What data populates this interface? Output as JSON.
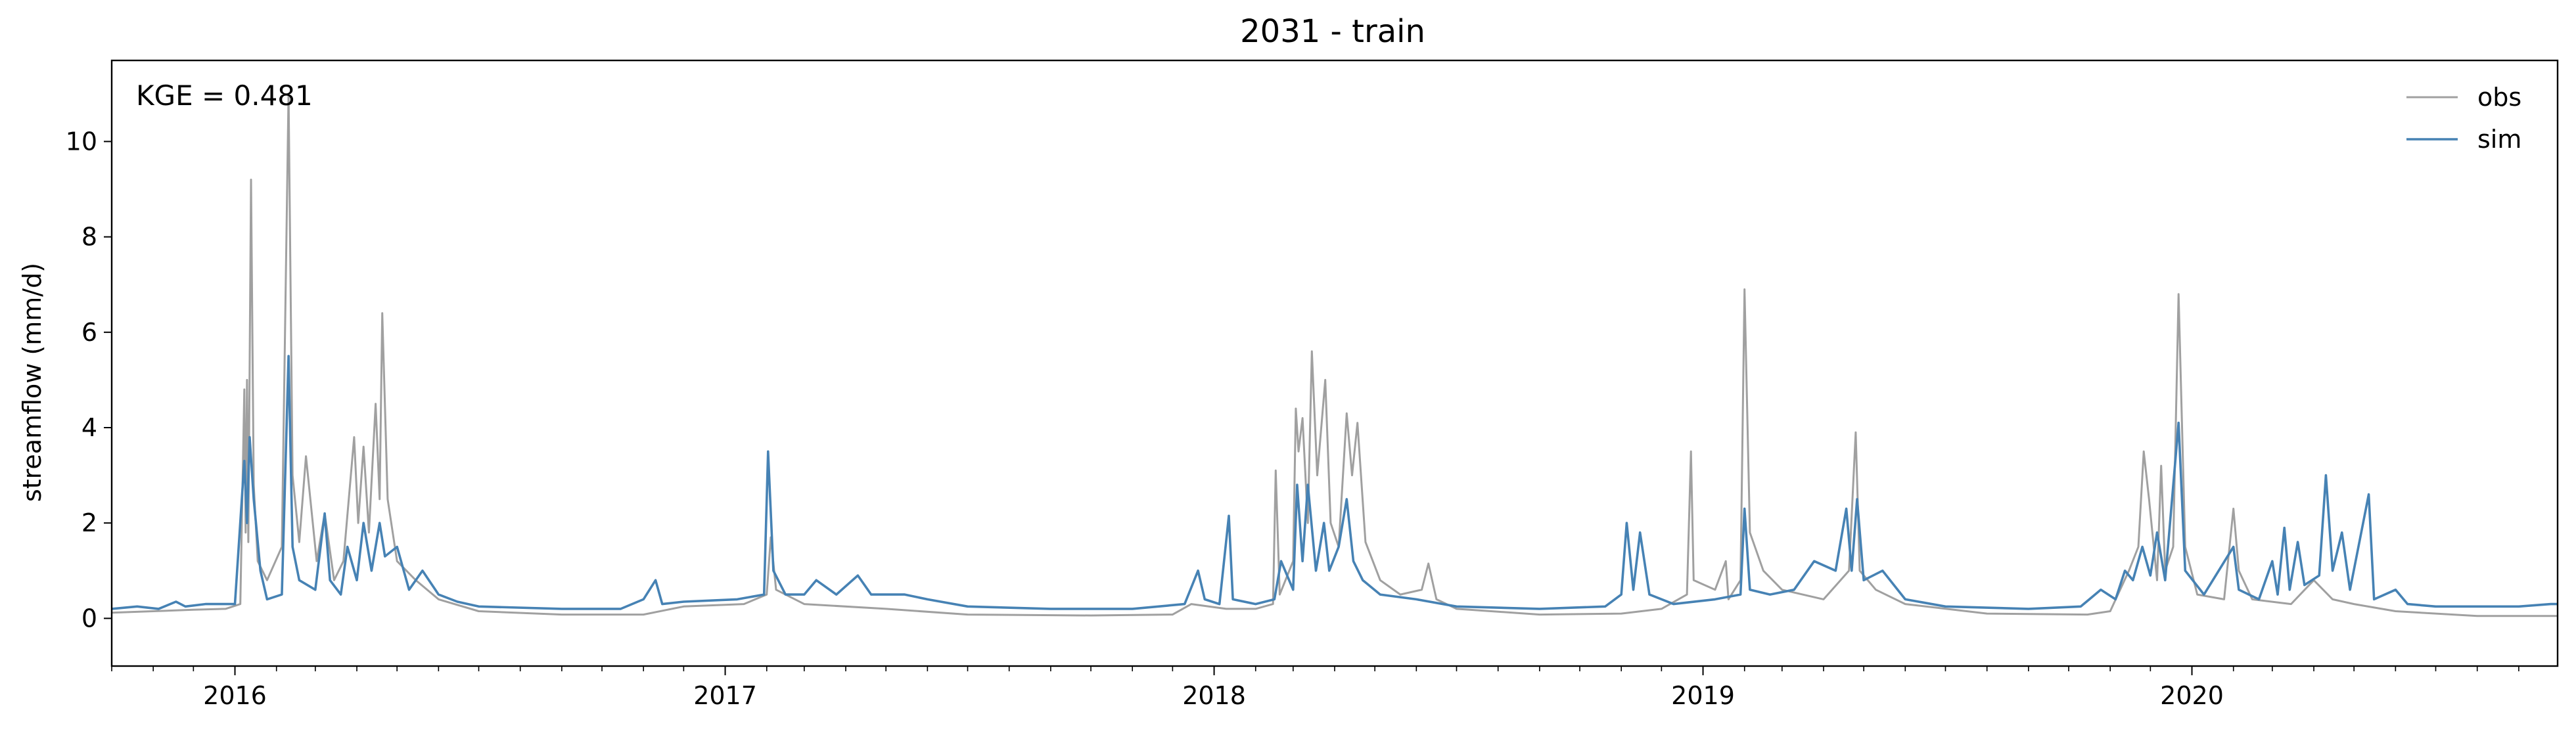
{
  "chart_data": {
    "type": "line",
    "title": "2031 - train",
    "xlabel": "",
    "ylabel": "streamflow (mm/d)",
    "annotation": "KGE = 0.481",
    "legend_position": "top-right",
    "grid": false,
    "xlim": [
      "2015-10-01",
      "2020-09-30"
    ],
    "ylim": [
      -1,
      11.7
    ],
    "yticks": [
      0,
      2,
      4,
      6,
      8,
      10
    ],
    "xtick_labels": [
      "2016",
      "2017",
      "2018",
      "2019",
      "2020"
    ],
    "xtick_dates": [
      "2016-01-01",
      "2017-01-01",
      "2018-01-01",
      "2019-01-01",
      "2020-01-01"
    ],
    "colors": {
      "obs": "#a0a0a0",
      "sim": "#4682b4"
    },
    "series": [
      {
        "name": "obs",
        "points": [
          [
            "2015-10-01",
            0.12
          ],
          [
            "2015-11-01",
            0.15
          ],
          [
            "2015-12-01",
            0.18
          ],
          [
            "2015-12-25",
            0.2
          ],
          [
            "2016-01-05",
            0.3
          ],
          [
            "2016-01-08",
            4.8
          ],
          [
            "2016-01-09",
            1.8
          ],
          [
            "2016-01-10",
            5.0
          ],
          [
            "2016-01-11",
            1.6
          ],
          [
            "2016-01-13",
            9.2
          ],
          [
            "2016-01-15",
            2.8
          ],
          [
            "2016-01-18",
            1.2
          ],
          [
            "2016-01-25",
            0.8
          ],
          [
            "2016-02-05",
            1.5
          ],
          [
            "2016-02-10",
            11.0
          ],
          [
            "2016-02-13",
            3.0
          ],
          [
            "2016-02-18",
            1.6
          ],
          [
            "2016-02-23",
            3.4
          ],
          [
            "2016-03-02",
            1.2
          ],
          [
            "2016-03-08",
            2.2
          ],
          [
            "2016-03-15",
            0.8
          ],
          [
            "2016-03-22",
            1.2
          ],
          [
            "2016-03-30",
            3.8
          ],
          [
            "2016-04-02",
            2.0
          ],
          [
            "2016-04-06",
            3.6
          ],
          [
            "2016-04-10",
            1.8
          ],
          [
            "2016-04-15",
            4.5
          ],
          [
            "2016-04-18",
            2.5
          ],
          [
            "2016-04-20",
            6.4
          ],
          [
            "2016-04-24",
            2.5
          ],
          [
            "2016-05-01",
            1.2
          ],
          [
            "2016-05-15",
            0.8
          ],
          [
            "2016-06-01",
            0.4
          ],
          [
            "2016-07-01",
            0.15
          ],
          [
            "2016-09-01",
            0.08
          ],
          [
            "2016-11-01",
            0.08
          ],
          [
            "2016-12-01",
            0.25
          ],
          [
            "2017-01-15",
            0.3
          ],
          [
            "2017-02-01",
            0.5
          ],
          [
            "2017-02-04",
            1.7
          ],
          [
            "2017-02-08",
            0.6
          ],
          [
            "2017-03-01",
            0.3
          ],
          [
            "2017-05-01",
            0.2
          ],
          [
            "2017-07-01",
            0.08
          ],
          [
            "2017-10-01",
            0.06
          ],
          [
            "2017-12-01",
            0.08
          ],
          [
            "2017-12-15",
            0.3
          ],
          [
            "2018-01-10",
            0.2
          ],
          [
            "2018-02-01",
            0.2
          ],
          [
            "2018-02-14",
            0.3
          ],
          [
            "2018-02-16",
            3.1
          ],
          [
            "2018-02-19",
            0.5
          ],
          [
            "2018-03-01",
            1.2
          ],
          [
            "2018-03-03",
            4.4
          ],
          [
            "2018-03-05",
            3.5
          ],
          [
            "2018-03-08",
            4.2
          ],
          [
            "2018-03-12",
            2.0
          ],
          [
            "2018-03-15",
            5.6
          ],
          [
            "2018-03-19",
            3.0
          ],
          [
            "2018-03-25",
            5.0
          ],
          [
            "2018-03-29",
            2.0
          ],
          [
            "2018-04-04",
            1.5
          ],
          [
            "2018-04-10",
            4.3
          ],
          [
            "2018-04-14",
            3.0
          ],
          [
            "2018-04-18",
            4.1
          ],
          [
            "2018-04-24",
            1.6
          ],
          [
            "2018-05-05",
            0.8
          ],
          [
            "2018-05-20",
            0.5
          ],
          [
            "2018-06-05",
            0.6
          ],
          [
            "2018-06-10",
            1.15
          ],
          [
            "2018-06-16",
            0.4
          ],
          [
            "2018-07-01",
            0.2
          ],
          [
            "2018-09-01",
            0.08
          ],
          [
            "2018-11-01",
            0.1
          ],
          [
            "2018-12-01",
            0.2
          ],
          [
            "2018-12-20",
            0.5
          ],
          [
            "2018-12-23",
            3.5
          ],
          [
            "2018-12-25",
            0.8
          ],
          [
            "2019-01-10",
            0.6
          ],
          [
            "2019-01-18",
            1.2
          ],
          [
            "2019-01-20",
            0.4
          ],
          [
            "2019-01-29",
            0.8
          ],
          [
            "2019-02-01",
            6.9
          ],
          [
            "2019-02-05",
            1.8
          ],
          [
            "2019-02-15",
            1.0
          ],
          [
            "2019-03-01",
            0.6
          ],
          [
            "2019-04-01",
            0.4
          ],
          [
            "2019-04-20",
            1.0
          ],
          [
            "2019-04-25",
            3.9
          ],
          [
            "2019-04-28",
            1.0
          ],
          [
            "2019-05-10",
            0.6
          ],
          [
            "2019-06-01",
            0.3
          ],
          [
            "2019-08-01",
            0.1
          ],
          [
            "2019-10-15",
            0.08
          ],
          [
            "2019-11-01",
            0.15
          ],
          [
            "2019-11-15",
            1.0
          ],
          [
            "2019-11-22",
            1.5
          ],
          [
            "2019-11-26",
            3.5
          ],
          [
            "2019-11-30",
            2.5
          ],
          [
            "2019-12-06",
            0.8
          ],
          [
            "2019-12-09",
            3.2
          ],
          [
            "2019-12-12",
            1.0
          ],
          [
            "2019-12-18",
            1.5
          ],
          [
            "2019-12-22",
            6.8
          ],
          [
            "2019-12-27",
            1.5
          ],
          [
            "2020-01-05",
            0.5
          ],
          [
            "2020-01-25",
            0.4
          ],
          [
            "2020-02-01",
            2.3
          ],
          [
            "2020-02-05",
            1.0
          ],
          [
            "2020-02-15",
            0.4
          ],
          [
            "2020-03-15",
            0.3
          ],
          [
            "2020-04-01",
            0.8
          ],
          [
            "2020-04-15",
            0.4
          ],
          [
            "2020-05-01",
            0.3
          ],
          [
            "2020-06-01",
            0.15
          ],
          [
            "2020-08-01",
            0.05
          ],
          [
            "2020-09-30",
            0.05
          ]
        ]
      },
      {
        "name": "sim",
        "points": [
          [
            "2015-10-01",
            0.2
          ],
          [
            "2015-10-20",
            0.25
          ],
          [
            "2015-11-05",
            0.2
          ],
          [
            "2015-11-18",
            0.35
          ],
          [
            "2015-11-25",
            0.25
          ],
          [
            "2015-12-10",
            0.3
          ],
          [
            "2016-01-01",
            0.3
          ],
          [
            "2016-01-08",
            3.3
          ],
          [
            "2016-01-10",
            2.0
          ],
          [
            "2016-01-12",
            3.8
          ],
          [
            "2016-01-15",
            2.5
          ],
          [
            "2016-01-20",
            1.0
          ],
          [
            "2016-01-25",
            0.4
          ],
          [
            "2016-02-05",
            0.5
          ],
          [
            "2016-02-10",
            5.5
          ],
          [
            "2016-02-13",
            1.5
          ],
          [
            "2016-02-18",
            0.8
          ],
          [
            "2016-03-01",
            0.6
          ],
          [
            "2016-03-08",
            2.2
          ],
          [
            "2016-03-12",
            0.8
          ],
          [
            "2016-03-20",
            0.5
          ],
          [
            "2016-03-25",
            1.5
          ],
          [
            "2016-04-01",
            0.8
          ],
          [
            "2016-04-06",
            2.0
          ],
          [
            "2016-04-12",
            1.0
          ],
          [
            "2016-04-18",
            2.0
          ],
          [
            "2016-04-22",
            1.3
          ],
          [
            "2016-05-01",
            1.5
          ],
          [
            "2016-05-10",
            0.6
          ],
          [
            "2016-05-20",
            1.0
          ],
          [
            "2016-06-01",
            0.5
          ],
          [
            "2016-06-15",
            0.35
          ],
          [
            "2016-07-01",
            0.25
          ],
          [
            "2016-09-01",
            0.2
          ],
          [
            "2016-10-15",
            0.2
          ],
          [
            "2016-11-01",
            0.4
          ],
          [
            "2016-11-10",
            0.8
          ],
          [
            "2016-11-15",
            0.3
          ],
          [
            "2016-12-01",
            0.35
          ],
          [
            "2017-01-10",
            0.4
          ],
          [
            "2017-01-30",
            0.5
          ],
          [
            "2017-02-02",
            3.5
          ],
          [
            "2017-02-06",
            1.0
          ],
          [
            "2017-02-15",
            0.5
          ],
          [
            "2017-03-01",
            0.5
          ],
          [
            "2017-03-10",
            0.8
          ],
          [
            "2017-03-25",
            0.5
          ],
          [
            "2017-04-10",
            0.9
          ],
          [
            "2017-04-20",
            0.5
          ],
          [
            "2017-05-15",
            0.5
          ],
          [
            "2017-06-01",
            0.4
          ],
          [
            "2017-07-01",
            0.25
          ],
          [
            "2017-09-01",
            0.2
          ],
          [
            "2017-11-01",
            0.2
          ],
          [
            "2017-12-10",
            0.3
          ],
          [
            "2017-12-20",
            1.0
          ],
          [
            "2017-12-25",
            0.4
          ],
          [
            "2018-01-05",
            0.3
          ],
          [
            "2018-01-12",
            2.15
          ],
          [
            "2018-01-15",
            0.4
          ],
          [
            "2018-02-01",
            0.3
          ],
          [
            "2018-02-15",
            0.4
          ],
          [
            "2018-02-20",
            1.2
          ],
          [
            "2018-03-01",
            0.6
          ],
          [
            "2018-03-04",
            2.8
          ],
          [
            "2018-03-08",
            1.2
          ],
          [
            "2018-03-12",
            2.8
          ],
          [
            "2018-03-18",
            1.0
          ],
          [
            "2018-03-24",
            2.0
          ],
          [
            "2018-03-28",
            1.0
          ],
          [
            "2018-04-04",
            1.5
          ],
          [
            "2018-04-10",
            2.5
          ],
          [
            "2018-04-15",
            1.2
          ],
          [
            "2018-04-22",
            0.8
          ],
          [
            "2018-05-05",
            0.5
          ],
          [
            "2018-06-01",
            0.4
          ],
          [
            "2018-07-01",
            0.25
          ],
          [
            "2018-09-01",
            0.2
          ],
          [
            "2018-10-20",
            0.25
          ],
          [
            "2018-11-01",
            0.5
          ],
          [
            "2018-11-05",
            2.0
          ],
          [
            "2018-11-10",
            0.6
          ],
          [
            "2018-11-15",
            1.8
          ],
          [
            "2018-11-22",
            0.5
          ],
          [
            "2018-12-10",
            0.3
          ],
          [
            "2019-01-10",
            0.4
          ],
          [
            "2019-01-29",
            0.5
          ],
          [
            "2019-02-01",
            2.3
          ],
          [
            "2019-02-05",
            0.6
          ],
          [
            "2019-02-20",
            0.5
          ],
          [
            "2019-03-10",
            0.6
          ],
          [
            "2019-03-25",
            1.2
          ],
          [
            "2019-04-10",
            1.0
          ],
          [
            "2019-04-18",
            2.3
          ],
          [
            "2019-04-22",
            1.0
          ],
          [
            "2019-04-26",
            2.5
          ],
          [
            "2019-05-01",
            0.8
          ],
          [
            "2019-05-15",
            1.0
          ],
          [
            "2019-06-01",
            0.4
          ],
          [
            "2019-07-01",
            0.25
          ],
          [
            "2019-09-01",
            0.2
          ],
          [
            "2019-10-10",
            0.25
          ],
          [
            "2019-10-25",
            0.6
          ],
          [
            "2019-11-05",
            0.4
          ],
          [
            "2019-11-12",
            1.0
          ],
          [
            "2019-11-18",
            0.8
          ],
          [
            "2019-11-25",
            1.5
          ],
          [
            "2019-12-01",
            0.9
          ],
          [
            "2019-12-06",
            1.8
          ],
          [
            "2019-12-12",
            0.8
          ],
          [
            "2019-12-22",
            4.1
          ],
          [
            "2019-12-27",
            1.0
          ],
          [
            "2020-01-10",
            0.5
          ],
          [
            "2020-02-01",
            1.5
          ],
          [
            "2020-02-05",
            0.6
          ],
          [
            "2020-02-20",
            0.4
          ],
          [
            "2020-03-01",
            1.2
          ],
          [
            "2020-03-05",
            0.5
          ],
          [
            "2020-03-10",
            1.9
          ],
          [
            "2020-03-14",
            0.6
          ],
          [
            "2020-03-20",
            1.6
          ],
          [
            "2020-03-25",
            0.7
          ],
          [
            "2020-04-05",
            0.9
          ],
          [
            "2020-04-10",
            3.0
          ],
          [
            "2020-04-15",
            1.0
          ],
          [
            "2020-04-22",
            1.8
          ],
          [
            "2020-04-28",
            0.6
          ],
          [
            "2020-05-12",
            2.6
          ],
          [
            "2020-05-16",
            0.4
          ],
          [
            "2020-06-01",
            0.6
          ],
          [
            "2020-06-10",
            0.3
          ],
          [
            "2020-07-01",
            0.25
          ],
          [
            "2020-09-01",
            0.25
          ],
          [
            "2020-09-25",
            0.3
          ],
          [
            "2020-09-30",
            0.3
          ]
        ]
      }
    ]
  }
}
